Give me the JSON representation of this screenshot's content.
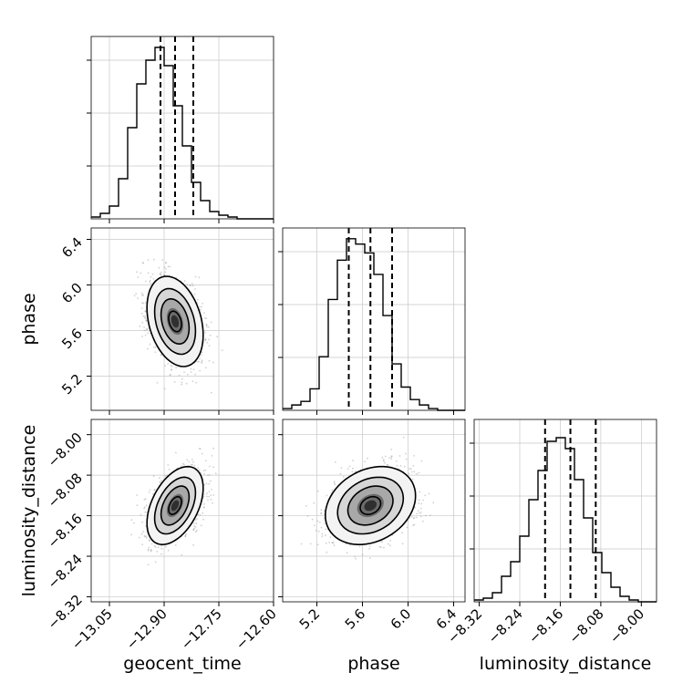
{
  "chart_data": {
    "type": "corner",
    "grid": true,
    "parameters": [
      {
        "name": "geocent_time",
        "xlabel": "geocent_time",
        "ylabel": "",
        "range": [
          -13.1,
          -12.6
        ],
        "ticks": [
          "−13.05",
          "−12.90",
          "−12.75",
          "−12.60"
        ],
        "tick_values": [
          -13.05,
          -12.9,
          -12.75,
          -12.6
        ],
        "quantiles": [
          -12.91,
          -12.87,
          -12.82
        ]
      },
      {
        "name": "phase",
        "xlabel": "phase",
        "ylabel": "phase",
        "range": [
          4.9,
          6.5
        ],
        "ticks": [
          "5.2",
          "5.6",
          "6.0",
          "6.4"
        ],
        "tick_values": [
          5.2,
          5.6,
          6.0,
          6.4
        ],
        "quantiles": [
          5.48,
          5.67,
          5.86
        ]
      },
      {
        "name": "luminosity_distance",
        "xlabel": "luminosity_distance",
        "ylabel": "luminosity_distance",
        "range": [
          -8.33,
          -7.97
        ],
        "ticks": [
          "−8.32",
          "−8.24",
          "−8.16",
          "−8.08",
          "−8.00"
        ],
        "tick_values": [
          -8.32,
          -8.24,
          -8.16,
          -8.08,
          -8.0
        ],
        "quantiles": [
          -8.19,
          -8.14,
          -8.09
        ]
      }
    ],
    "histograms": [
      {
        "parameter": "geocent_time",
        "bins_lo": -13.1,
        "bin_width": 0.025,
        "counts": [
          1,
          3,
          7,
          22,
          50,
          74,
          87,
          94,
          84,
          62,
          40,
          20,
          10,
          4,
          2,
          1,
          0,
          0,
          0,
          0
        ],
        "max_count": 100
      },
      {
        "parameter": "phase",
        "bins_lo": 4.9,
        "bin_width": 0.08,
        "counts": [
          1,
          3,
          5,
          12,
          30,
          62,
          84,
          96,
          93,
          88,
          76,
          53,
          26,
          13,
          6,
          3,
          1,
          0,
          0,
          0
        ],
        "max_count": 102
      },
      {
        "parameter": "luminosity_distance",
        "bins_lo": -8.33,
        "bin_width": 0.018,
        "counts": [
          1,
          2,
          5,
          14,
          22,
          36,
          56,
          72,
          88,
          90,
          84,
          67,
          46,
          27,
          16,
          8,
          3,
          1,
          0,
          0
        ],
        "max_count": 100
      }
    ],
    "joint": [
      {
        "x": "geocent_time",
        "y": "phase",
        "mean": [
          -12.87,
          5.68
        ],
        "sd": [
          0.035,
          0.18
        ],
        "rho": -0.3
      },
      {
        "x": "geocent_time",
        "y": "luminosity_distance",
        "mean": [
          -12.87,
          -8.14
        ],
        "sd": [
          0.035,
          0.035
        ],
        "rho": 0.45
      },
      {
        "x": "phase",
        "y": "luminosity_distance",
        "mean": [
          5.67,
          -8.14
        ],
        "sd": [
          0.18,
          0.035
        ],
        "rho": 0.25
      }
    ],
    "contour_levels": [
      0.5,
      1.0,
      1.5,
      2.0
    ]
  }
}
